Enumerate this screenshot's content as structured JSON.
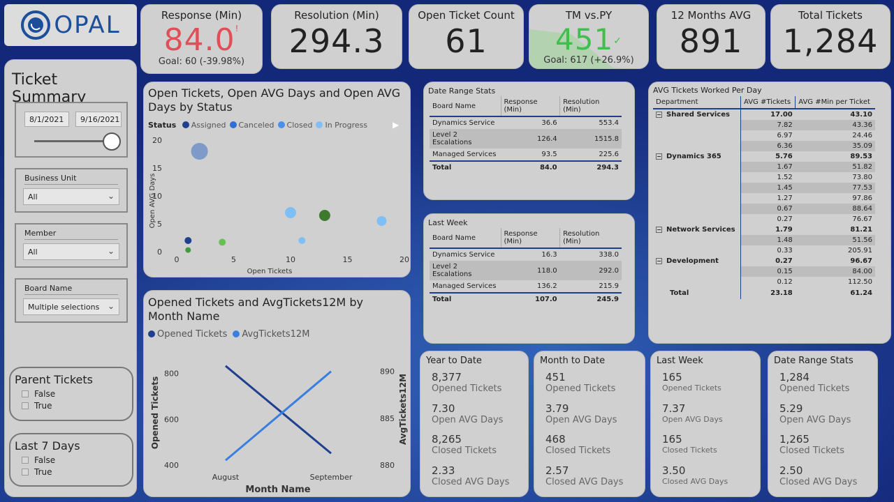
{
  "logo": {
    "text": "OPAL"
  },
  "kpis": [
    {
      "title": "Response (Min)",
      "value": "84.0",
      "goal": "Goal: 60 (-39.98%)",
      "status_color": "#e04e58",
      "indicator": "!"
    },
    {
      "title": "Resolution (Min)",
      "value": "294.3"
    },
    {
      "title": "Open Ticket Count",
      "value": "61"
    },
    {
      "title": "TM vs.PY",
      "value": "451",
      "goal": "Goal: 617 (+26.9%)",
      "status_color": "#3fbf4c",
      "indicator": "✓"
    },
    {
      "title": "12 Months AVG",
      "value": "891"
    },
    {
      "title": "Total Tickets",
      "value": "1,284"
    }
  ],
  "sidebar": {
    "title": "Ticket Summary",
    "date_start": "8/1/2021",
    "date_end": "9/16/2021",
    "slider": {
      "value": 1.0
    },
    "business_unit": {
      "label": "Business Unit",
      "value": "All"
    },
    "member": {
      "label": "Member",
      "value": "All"
    },
    "board_name": {
      "label": "Board Name",
      "value": "Multiple selections"
    },
    "parent_tickets": {
      "label": "Parent Tickets",
      "options": [
        "False",
        "True"
      ]
    },
    "last7": {
      "label": "Last 7 Days",
      "options": [
        "False",
        "True"
      ]
    }
  },
  "scatter": {
    "title": "Open Tickets, Open AVG Days and Open AVG Days by Status",
    "legend_label": "Status",
    "legend": [
      {
        "name": "Assigned",
        "color": "#1f3f8f"
      },
      {
        "name": "Canceled",
        "color": "#2f6fd6"
      },
      {
        "name": "Closed",
        "color": "#4a8ff0"
      },
      {
        "name": "In Progress",
        "color": "#80bff5"
      }
    ]
  },
  "linechart": {
    "title": "Opened Tickets and AvgTickets12M by Month Name",
    "legend": [
      {
        "name": "Opened Tickets",
        "color": "#1f3f8f"
      },
      {
        "name": "AvgTickets12M",
        "color": "#3a7fe0"
      }
    ]
  },
  "chart_data": [
    {
      "type": "scatter",
      "title": "Open Tickets, Open AVG Days and Open AVG Days by Status",
      "xlabel": "Open Tickets",
      "ylabel": "Open AVG Days",
      "xlim": [
        0,
        20
      ],
      "ylim": [
        0,
        20
      ],
      "xticks": [
        "0",
        "5",
        "10",
        "15",
        "20"
      ],
      "yticks": [
        "0",
        "5",
        "10",
        "15",
        "20"
      ],
      "points": [
        {
          "x": 2,
          "y": 18,
          "size": 12,
          "color": "#7e9ac9"
        },
        {
          "x": 1,
          "y": 2,
          "size": 5,
          "color": "#1f3f8f"
        },
        {
          "x": 1,
          "y": 0.3,
          "size": 4,
          "color": "#3e9a3e"
        },
        {
          "x": 4,
          "y": 1.7,
          "size": 5,
          "color": "#66c150"
        },
        {
          "x": 10,
          "y": 7,
          "size": 8,
          "color": "#80bff5"
        },
        {
          "x": 11,
          "y": 2,
          "size": 5,
          "color": "#80bff5"
        },
        {
          "x": 13,
          "y": 6.5,
          "size": 8,
          "color": "#3e7a2e"
        },
        {
          "x": 18,
          "y": 5.5,
          "size": 7,
          "color": "#80bff5"
        }
      ],
      "legend_placement": "top"
    },
    {
      "type": "line",
      "title": "Opened Tickets and AvgTickets12M by Month Name",
      "xlabel": "Month Name",
      "ylabel": "Opened Tickets",
      "y2label": "AvgTickets12M",
      "categories": [
        "August",
        "September"
      ],
      "ylim": [
        400,
        850
      ],
      "y2lim": [
        880,
        891
      ],
      "yticks": [
        "400",
        "600",
        "800"
      ],
      "y2ticks": [
        "880",
        "885",
        "890"
      ],
      "series": [
        {
          "name": "Opened Tickets",
          "values": [
            833,
            451
          ],
          "axis": "left",
          "color": "#1f3f8f"
        },
        {
          "name": "AvgTickets12M",
          "values": [
            880.5,
            890
          ],
          "axis": "right",
          "color": "#3a7fe0"
        }
      ]
    }
  ],
  "date_range_table": {
    "title": "Date Range Stats",
    "headers": [
      "Board Name",
      "Response (Min)",
      "Resolution (Min)"
    ],
    "rows": [
      [
        "Dynamics Service",
        "36.6",
        "553.4"
      ],
      [
        "Level 2 Escalations",
        "126.4",
        "1515.8"
      ],
      [
        "Managed Services",
        "93.5",
        "225.6"
      ]
    ],
    "total": [
      "Total",
      "84.0",
      "294.3"
    ]
  },
  "last_week_table": {
    "title": "Last Week",
    "headers": [
      "Board Name",
      "Response (Min)",
      "Resolution (Min)"
    ],
    "rows": [
      [
        "Dynamics Service",
        "16.3",
        "338.0"
      ],
      [
        "Level 2 Escalations",
        "118.0",
        "292.0"
      ],
      [
        "Managed Services",
        "136.2",
        "215.9"
      ]
    ],
    "total": [
      "Total",
      "107.0",
      "245.9"
    ]
  },
  "avg_table": {
    "title": "AVG Tickets Worked Per Day",
    "headers": [
      "Department",
      "AVG #Tickets",
      "AVG #Min per Ticket"
    ],
    "rows": [
      {
        "dept": "Shared Services",
        "a": "17.00",
        "b": "43.10",
        "group": true
      },
      {
        "dept": "",
        "a": "7.82",
        "b": "43.36"
      },
      {
        "dept": "",
        "a": "6.97",
        "b": "24.46"
      },
      {
        "dept": "",
        "a": "6.36",
        "b": "35.09"
      },
      {
        "dept": "Dynamics 365",
        "a": "5.76",
        "b": "89.53",
        "group": true
      },
      {
        "dept": "",
        "a": "1.67",
        "b": "51.82"
      },
      {
        "dept": "",
        "a": "1.52",
        "b": "73.80"
      },
      {
        "dept": "",
        "a": "1.45",
        "b": "77.53"
      },
      {
        "dept": "",
        "a": "1.27",
        "b": "97.86"
      },
      {
        "dept": "",
        "a": "0.67",
        "b": "88.64"
      },
      {
        "dept": "",
        "a": "0.27",
        "b": "76.67"
      },
      {
        "dept": "Network Services",
        "a": "1.79",
        "b": "81.21",
        "group": true
      },
      {
        "dept": "",
        "a": "1.48",
        "b": "51.56"
      },
      {
        "dept": "",
        "a": "0.33",
        "b": "205.91"
      },
      {
        "dept": "Development",
        "a": "0.27",
        "b": "96.67",
        "group": true
      },
      {
        "dept": "",
        "a": "0.15",
        "b": "84.00"
      },
      {
        "dept": "",
        "a": "0.12",
        "b": "112.50"
      }
    ],
    "total": [
      "Total",
      "23.18",
      "61.24"
    ]
  },
  "stats": [
    {
      "title": "Year to Date",
      "items": [
        {
          "v": "8,377",
          "l": "Opened Tickets"
        },
        {
          "v": "7.30",
          "l": "Open AVG Days"
        },
        {
          "v": "8,265",
          "l": "Closed Tickets"
        },
        {
          "v": "2.33",
          "l": "Closed AVG Days"
        }
      ]
    },
    {
      "title": "Month to Date",
      "items": [
        {
          "v": "451",
          "l": "Opened Tickets"
        },
        {
          "v": "3.79",
          "l": "Open AVG Days"
        },
        {
          "v": "468",
          "l": "Closed Tickets"
        },
        {
          "v": "2.57",
          "l": "Closed AVG Days"
        }
      ]
    },
    {
      "title": "Last Week",
      "items": [
        {
          "v": "165",
          "l": "Opened Tickets"
        },
        {
          "v": "7.37",
          "l": "Open AVG Days"
        },
        {
          "v": "165",
          "l": "Closed Tickets"
        },
        {
          "v": "3.50",
          "l": "Closed AVG Days"
        }
      ]
    },
    {
      "title": "Date Range Stats",
      "items": [
        {
          "v": "1,284",
          "l": "Opened Tickets"
        },
        {
          "v": "5.29",
          "l": "Open AVG Days"
        },
        {
          "v": "1,265",
          "l": "Closed Tickets"
        },
        {
          "v": "2.50",
          "l": "Closed AVG Days"
        }
      ]
    }
  ]
}
